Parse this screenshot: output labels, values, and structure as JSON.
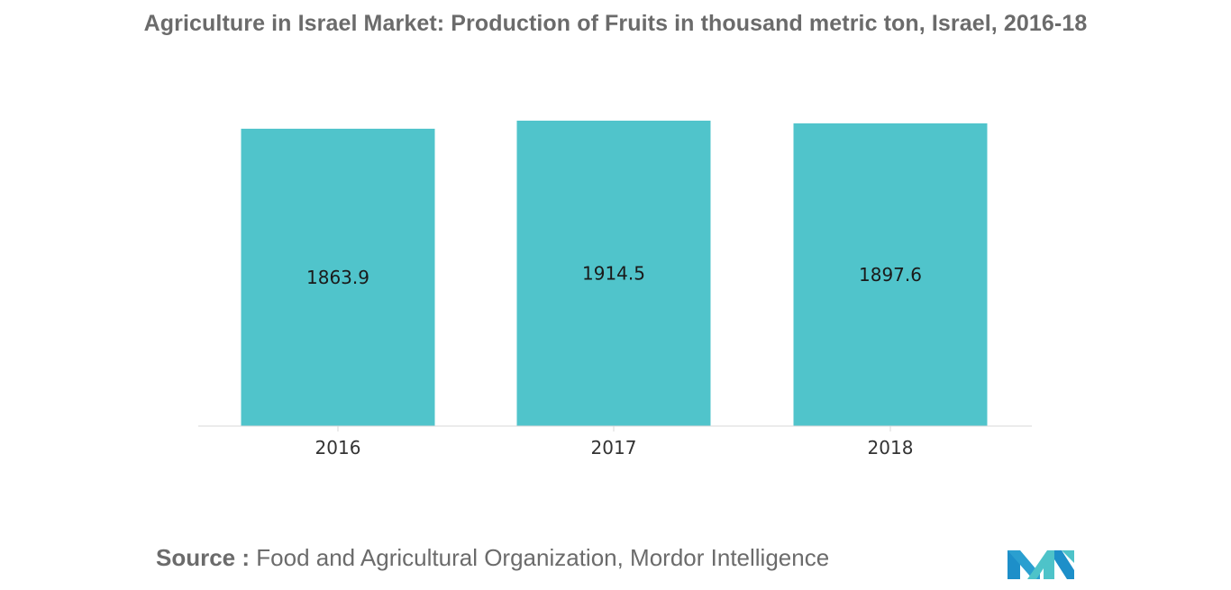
{
  "title": "Agriculture in Israel Market: Production of Fruits in thousand metric ton, Israel, 2016-18",
  "source": {
    "label": "Source :",
    "text": "Food and Agricultural Organization, Mordor Intelligence"
  },
  "logo": {
    "icon": "mordor-intelligence-logo",
    "colors": [
      "#1d8fc9",
      "#4ec3c9"
    ]
  },
  "colors": {
    "bar": "#50c4cb",
    "title": "#6b6b6b",
    "text": "#1a1a1a"
  },
  "chart_data": {
    "type": "bar",
    "title": "Agriculture in Israel Market: Production of Fruits in thousand metric ton, Israel, 2016-18",
    "categories": [
      "2016",
      "2017",
      "2018"
    ],
    "values": [
      1863.9,
      1914.5,
      1897.6
    ],
    "data_labels": [
      "1863.9",
      "1914.5",
      "1897.6"
    ],
    "xlabel": "",
    "ylabel": "",
    "grid": false,
    "legend": "none"
  }
}
